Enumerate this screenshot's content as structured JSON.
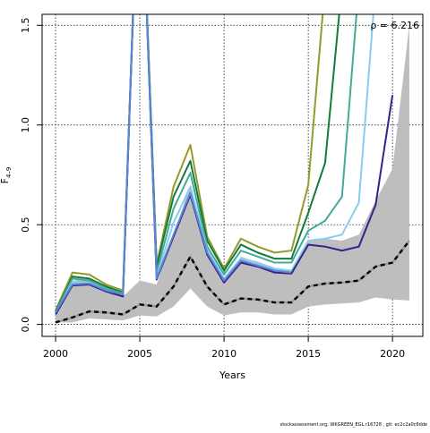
{
  "chart_data": {
    "type": "line",
    "title": "",
    "xlabel": "Years",
    "ylabel_main": "F",
    "ylabel_sub": "4–9",
    "xlim": [
      1999.2,
      2021.8
    ],
    "ylim": [
      -0.06,
      1.555
    ],
    "x_ticks": [
      2000,
      2005,
      2010,
      2015,
      2020
    ],
    "y_ticks": [
      0.0,
      0.5,
      1.0,
      1.5
    ],
    "y_tick_labels": [
      "0.0",
      "0.5",
      "1.0",
      "1.5"
    ],
    "grid": true,
    "annotation": "ρ = 6.216",
    "band": {
      "x": [
        2000,
        2001,
        2002,
        2003,
        2004,
        2005,
        2006,
        2007,
        2008,
        2009,
        2010,
        2011,
        2012,
        2013,
        2014,
        2015,
        2016,
        2017,
        2018,
        2019,
        2020,
        2021
      ],
      "lower": [
        0.01,
        0.01,
        0.03,
        0.025,
        0.02,
        0.045,
        0.04,
        0.09,
        0.18,
        0.09,
        0.045,
        0.06,
        0.06,
        0.05,
        0.05,
        0.09,
        0.1,
        0.105,
        0.11,
        0.135,
        0.125,
        0.12
      ],
      "upper": [
        0.06,
        0.22,
        0.23,
        0.17,
        0.14,
        0.22,
        0.2,
        0.45,
        0.7,
        0.35,
        0.21,
        0.34,
        0.31,
        0.28,
        0.27,
        0.42,
        0.43,
        0.42,
        0.45,
        0.62,
        0.78,
        1.5
      ],
      "color": "#bebebe"
    },
    "median": {
      "x": [
        2000,
        2001,
        2002,
        2003,
        2004,
        2005,
        2006,
        2007,
        2008,
        2009,
        2010,
        2011,
        2012,
        2013,
        2014,
        2015,
        2016,
        2017,
        2018,
        2019,
        2020,
        2021
      ],
      "values": [
        0.01,
        0.035,
        0.065,
        0.06,
        0.05,
        0.1,
        0.09,
        0.19,
        0.34,
        0.19,
        0.1,
        0.13,
        0.125,
        0.11,
        0.11,
        0.19,
        0.205,
        0.21,
        0.22,
        0.29,
        0.31,
        0.42
      ],
      "color": "#000000",
      "dash_color": "#9a9a9a"
    },
    "series": [
      {
        "color": "#969a2c",
        "x": [
          2000,
          2001,
          2002,
          2003,
          2004,
          2005,
          2006,
          2007,
          2008,
          2009,
          2010,
          2011,
          2012,
          2013,
          2014,
          2015,
          2016
        ],
        "values": [
          0.07,
          0.26,
          0.25,
          0.2,
          0.17,
          2.5,
          0.3,
          0.69,
          0.9,
          0.44,
          0.28,
          0.43,
          0.39,
          0.36,
          0.37,
          0.7,
          1.7
        ]
      },
      {
        "color": "#127a3c",
        "x": [
          2000,
          2001,
          2002,
          2003,
          2004,
          2005,
          2006,
          2007,
          2008,
          2009,
          2010,
          2011,
          2012,
          2013,
          2014,
          2015,
          2016,
          2017
        ],
        "values": [
          0.065,
          0.24,
          0.23,
          0.19,
          0.16,
          2.5,
          0.29,
          0.64,
          0.82,
          0.42,
          0.27,
          0.4,
          0.36,
          0.33,
          0.33,
          0.56,
          0.81,
          1.7
        ]
      },
      {
        "color": "#44aa99",
        "x": [
          2000,
          2001,
          2002,
          2003,
          2004,
          2005,
          2006,
          2007,
          2008,
          2009,
          2010,
          2011,
          2012,
          2013,
          2014,
          2015,
          2016,
          2017,
          2018
        ],
        "values": [
          0.06,
          0.23,
          0.22,
          0.18,
          0.155,
          2.5,
          0.26,
          0.58,
          0.76,
          0.39,
          0.25,
          0.37,
          0.34,
          0.31,
          0.31,
          0.47,
          0.52,
          0.64,
          1.7
        ]
      },
      {
        "color": "#88ccee",
        "x": [
          2000,
          2001,
          2002,
          2003,
          2004,
          2005,
          2006,
          2007,
          2008,
          2009,
          2010,
          2011,
          2012,
          2013,
          2014,
          2015,
          2016,
          2017,
          2018,
          2019
        ],
        "values": [
          0.055,
          0.21,
          0.21,
          0.17,
          0.15,
          2.5,
          0.24,
          0.51,
          0.69,
          0.37,
          0.23,
          0.33,
          0.31,
          0.28,
          0.27,
          0.42,
          0.43,
          0.45,
          0.61,
          1.7
        ]
      },
      {
        "color": "#332288",
        "x": [
          2000,
          2001,
          2002,
          2003,
          2004,
          2005,
          2006,
          2007,
          2008,
          2009,
          2010,
          2011,
          2012,
          2013,
          2014,
          2015,
          2016,
          2017,
          2018,
          2019,
          2020
        ],
        "values": [
          0.05,
          0.195,
          0.2,
          0.165,
          0.14,
          2.5,
          0.225,
          0.44,
          0.65,
          0.35,
          0.21,
          0.31,
          0.29,
          0.26,
          0.255,
          0.4,
          0.39,
          0.37,
          0.39,
          0.6,
          1.15
        ]
      },
      {
        "color": "#5b84d6",
        "x": [
          2000,
          2001,
          2002,
          2003,
          2004,
          2005,
          2006,
          2007,
          2008,
          2009,
          2010,
          2011,
          2012,
          2013,
          2014
        ],
        "values": [
          0.06,
          0.2,
          0.205,
          0.17,
          0.15,
          2.5,
          0.23,
          0.45,
          0.66,
          0.36,
          0.22,
          0.32,
          0.295,
          0.27,
          0.26
        ]
      }
    ]
  },
  "footer": "stockassessment.org, WKGREEN_EGL r16728 , git: ec2c2a0c6dde"
}
